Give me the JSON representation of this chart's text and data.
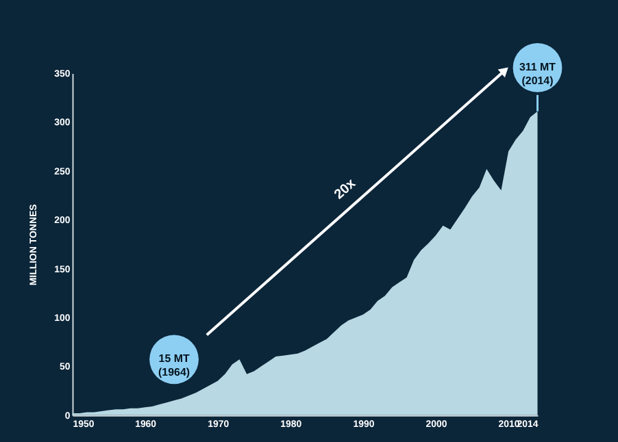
{
  "chart_data": {
    "type": "area",
    "ylabel": "MILLION TONNES",
    "x": [
      1950,
      1951,
      1952,
      1953,
      1954,
      1955,
      1956,
      1957,
      1958,
      1959,
      1960,
      1961,
      1962,
      1963,
      1964,
      1965,
      1966,
      1967,
      1968,
      1969,
      1970,
      1971,
      1972,
      1973,
      1974,
      1975,
      1976,
      1977,
      1978,
      1979,
      1980,
      1981,
      1982,
      1983,
      1984,
      1985,
      1986,
      1987,
      1988,
      1989,
      1990,
      1991,
      1992,
      1993,
      1994,
      1995,
      1996,
      1997,
      1998,
      1999,
      2000,
      2001,
      2002,
      2003,
      2004,
      2005,
      2006,
      2007,
      2008,
      2009,
      2010,
      2011,
      2012,
      2013,
      2014
    ],
    "series": [
      {
        "color": "#b8d8e3",
        "values": [
          2,
          2,
          3,
          3,
          4,
          5,
          6,
          6,
          7,
          7,
          8,
          9,
          11,
          13,
          15,
          17,
          20,
          23,
          27,
          31,
          35,
          42,
          52,
          57,
          42,
          45,
          50,
          55,
          60,
          61,
          62,
          63,
          66,
          70,
          74,
          78,
          85,
          92,
          97,
          100,
          103,
          108,
          117,
          122,
          131,
          136,
          141,
          159,
          169,
          176,
          184,
          194,
          190,
          201,
          212,
          224,
          233,
          252,
          240,
          230,
          270,
          282,
          291,
          305,
          311
        ]
      }
    ],
    "xlim": [
      1950,
      2014
    ],
    "xticks": [
      1950,
      1960,
      1970,
      1980,
      1990,
      2000,
      2010,
      2014
    ],
    "ylim": [
      0,
      350
    ],
    "yticks": [
      0,
      50,
      100,
      150,
      200,
      250,
      300,
      350
    ],
    "grid": false,
    "annotations": [
      {
        "text": "15 MT\n(1964)",
        "x": 1964,
        "y": 57
      },
      {
        "text": "311 MT\n(2014)",
        "x": 2014,
        "y": 311
      },
      "20x"
    ]
  }
}
